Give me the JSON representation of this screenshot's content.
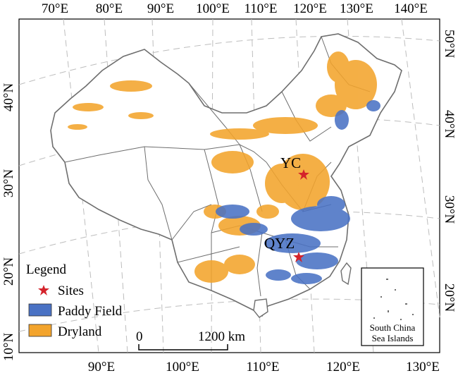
{
  "map": {
    "top_ticks": [
      "70°E",
      "80°E",
      "90°E",
      "100°E",
      "110°E",
      "120°E",
      "130°E",
      "140°E"
    ],
    "bottom_ticks": [
      "90°E",
      "100°E",
      "110°E",
      "120°E",
      "130°E"
    ],
    "left_ticks": [
      "40°N",
      "30°N",
      "20°N",
      "10°N"
    ],
    "right_ticks": [
      "50°N",
      "40°N",
      "30°N",
      "20°N"
    ],
    "legend": {
      "title": "Legend",
      "items": [
        {
          "label": "Sites",
          "symbol": "star",
          "color": "#d4232b"
        },
        {
          "label": "Paddy Field",
          "symbol": "box",
          "color": "#4a72c4"
        },
        {
          "label": "Dryland",
          "symbol": "box",
          "color": "#f3a42c"
        }
      ]
    },
    "scale_bar": {
      "start_label": "0",
      "end_label": "1200 km"
    },
    "sites": [
      {
        "name": "YC",
        "star_color": "#d4232b"
      },
      {
        "name": "QYZ",
        "star_color": "#d4232b"
      }
    ],
    "inset": {
      "line1": "South China",
      "line2": "Sea Islands"
    },
    "colors": {
      "paddy": "#4a72c4",
      "dryland": "#f3a42c",
      "boundary": "#6e6e6e",
      "graticule": "#bdbdbd",
      "site": "#d4232b"
    }
  }
}
